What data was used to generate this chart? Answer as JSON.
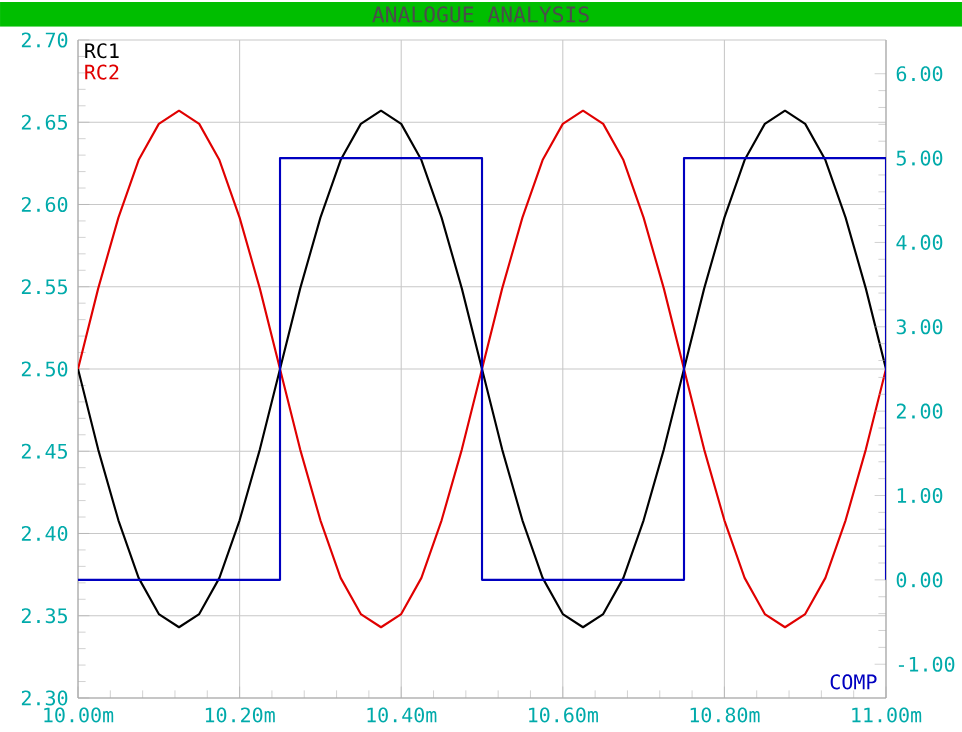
{
  "chart_data": {
    "type": "line",
    "title": "ANALOGUE ANALYSIS",
    "x": [
      10.0,
      10.025,
      10.05,
      10.075,
      10.1,
      10.125,
      10.15,
      10.175,
      10.2,
      10.225,
      10.25,
      10.275,
      10.3,
      10.325,
      10.35,
      10.375,
      10.4,
      10.425,
      10.45,
      10.475,
      10.5,
      10.525,
      10.55,
      10.575,
      10.6,
      10.625,
      10.65,
      10.675,
      10.7,
      10.725,
      10.75,
      10.775,
      10.8,
      10.825,
      10.85,
      10.875,
      10.9,
      10.925,
      10.95,
      10.975,
      11.0
    ],
    "series": [
      {
        "name": "RC1",
        "color": "#000000",
        "values": [
          2.5,
          2.451,
          2.408,
          2.373,
          2.351,
          2.343,
          2.351,
          2.373,
          2.408,
          2.451,
          2.5,
          2.549,
          2.592,
          2.627,
          2.649,
          2.657,
          2.649,
          2.627,
          2.592,
          2.549,
          2.5,
          2.451,
          2.408,
          2.373,
          2.351,
          2.343,
          2.351,
          2.373,
          2.408,
          2.451,
          2.5,
          2.549,
          2.592,
          2.627,
          2.649,
          2.657,
          2.649,
          2.627,
          2.592,
          2.549,
          2.5
        ]
      },
      {
        "name": "RC2",
        "color": "#e00000",
        "values": [
          2.5,
          2.549,
          2.592,
          2.627,
          2.649,
          2.657,
          2.649,
          2.627,
          2.592,
          2.549,
          2.5,
          2.451,
          2.408,
          2.373,
          2.351,
          2.343,
          2.351,
          2.373,
          2.408,
          2.451,
          2.5,
          2.549,
          2.592,
          2.627,
          2.649,
          2.657,
          2.649,
          2.627,
          2.592,
          2.549,
          2.5,
          2.451,
          2.408,
          2.373,
          2.351,
          2.343,
          2.351,
          2.373,
          2.408,
          2.451,
          2.5
        ]
      },
      {
        "name": "COMP",
        "color": "#0000c0",
        "axis": "y2",
        "x": [
          10.0,
          10.25,
          10.25,
          10.5,
          10.5,
          10.75,
          10.75,
          11.0,
          11.0
        ],
        "values": [
          0,
          0,
          5,
          5,
          0,
          0,
          5,
          5,
          0
        ]
      }
    ],
    "xlim": [
      10.0,
      11.0
    ],
    "xticks": [
      {
        "value": 10.0,
        "label": "10.00m"
      },
      {
        "value": 10.2,
        "label": "10.20m"
      },
      {
        "value": 10.4,
        "label": "10.40m"
      },
      {
        "value": 10.6,
        "label": "10.60m"
      },
      {
        "value": 10.8,
        "label": "10.80m"
      },
      {
        "value": 11.0,
        "label": "11.00m"
      }
    ],
    "ylim": [
      2.3,
      2.7
    ],
    "yticks": [
      {
        "value": 2.3,
        "label": "2.30"
      },
      {
        "value": 2.35,
        "label": "2.35"
      },
      {
        "value": 2.4,
        "label": "2.40"
      },
      {
        "value": 2.45,
        "label": "2.45"
      },
      {
        "value": 2.5,
        "label": "2.50"
      },
      {
        "value": 2.55,
        "label": "2.55"
      },
      {
        "value": 2.6,
        "label": "2.60"
      },
      {
        "value": 2.65,
        "label": "2.65"
      },
      {
        "value": 2.7,
        "label": "2.70"
      }
    ],
    "y2lim": [
      -1.4,
      6.4
    ],
    "y2ticks": [
      {
        "value": -1,
        "label": "-1.00"
      },
      {
        "value": 0,
        "label": "0.00"
      },
      {
        "value": 1,
        "label": "1.00"
      },
      {
        "value": 2,
        "label": "2.00"
      },
      {
        "value": 3,
        "label": "3.00"
      },
      {
        "value": 4,
        "label": "4.00"
      },
      {
        "value": 5,
        "label": "5.00"
      },
      {
        "value": 6,
        "label": "6.00"
      }
    ],
    "grid": true,
    "marker": "none",
    "line_style": "solid"
  }
}
